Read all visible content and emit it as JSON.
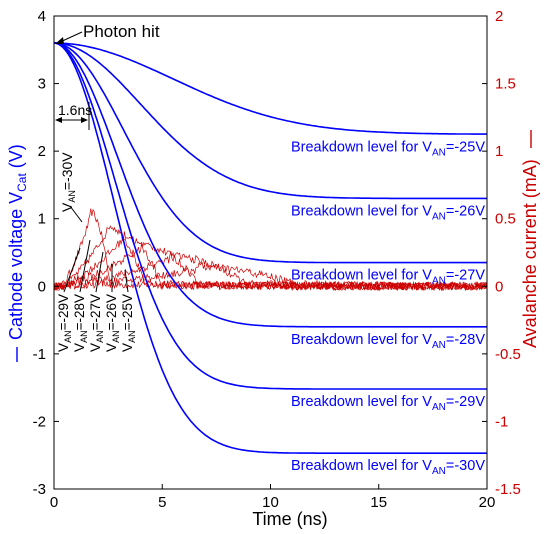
{
  "chart_data": {
    "type": "line",
    "xlabel": "Time (ns)",
    "y_left": {
      "label_prefix": "Cathode voltage V",
      "label_sub": "Cat",
      "label_suffix": " (V)",
      "range": [
        -3,
        4
      ],
      "ticks": [
        "4",
        "3",
        "2",
        "1",
        "0",
        "-1",
        "-2",
        "-3"
      ],
      "color": "#0000ff"
    },
    "y_right": {
      "label": "Avalanche current (mA)",
      "range": [
        -1.5,
        2
      ],
      "ticks": [
        "2",
        "1.5",
        "1",
        "0.5",
        "0",
        "-0.5",
        "-1",
        "-1.5"
      ],
      "color": "#cc0000"
    },
    "x_range": [
      0,
      20
    ],
    "x_ticks": [
      "0",
      "5",
      "10",
      "15",
      "20"
    ],
    "voltage_series": [
      {
        "van": -25,
        "start": 3.6,
        "end": 2.25,
        "tau": 5.5
      },
      {
        "van": -26,
        "start": 3.6,
        "end": 1.3,
        "tau": 4.0
      },
      {
        "van": -27,
        "start": 3.6,
        "end": 0.35,
        "tau": 3.2
      },
      {
        "van": -28,
        "start": 3.6,
        "end": -0.6,
        "tau": 2.9
      },
      {
        "van": -29,
        "start": 3.6,
        "end": -1.52,
        "tau": 2.8
      },
      {
        "van": -30,
        "start": 3.6,
        "end": -2.47,
        "tau": 2.8
      }
    ],
    "current_series": [
      {
        "van": -30,
        "peak": 0.52,
        "t_peak": 1.7,
        "end": 2.6
      },
      {
        "van": -29,
        "peak": 0.42,
        "t_peak": 2.5,
        "end": 4.2
      },
      {
        "van": -28,
        "peak": 0.35,
        "t_peak": 3.2,
        "end": 5.0
      },
      {
        "van": -27,
        "peak": 0.28,
        "t_peak": 4.0,
        "end": 6.8
      },
      {
        "van": -26,
        "peak": 0.2,
        "t_peak": 5.3,
        "end": 9.0
      },
      {
        "van": -25,
        "peak": 0.12,
        "t_peak": 6.5,
        "end": 11.5
      }
    ],
    "breakdown_labels": [
      {
        "prefix": "Breakdown level for V",
        "sub": "AN",
        "value": "=-25V"
      },
      {
        "prefix": "Breakdown level for V",
        "sub": "AN",
        "value": "=-26V"
      },
      {
        "prefix": "Breakdown level for V",
        "sub": "AN",
        "value": "=-27V"
      },
      {
        "prefix": "Breakdown level for V",
        "sub": "AN",
        "value": "=-28V"
      },
      {
        "prefix": "Breakdown level for V",
        "sub": "AN",
        "value": "=-29V"
      },
      {
        "prefix": "Breakdown level for V",
        "sub": "AN",
        "value": "=-30V"
      }
    ],
    "annotations": {
      "photon_hit": "Photon hit",
      "delay": "1.6ns",
      "van_prefix": "V",
      "van_sub": "AN",
      "peak_label_value": "=-30V",
      "rotated_labels": [
        "=-29V",
        "=-28V",
        "=-27V",
        "=-26V",
        "=-25V"
      ]
    }
  }
}
